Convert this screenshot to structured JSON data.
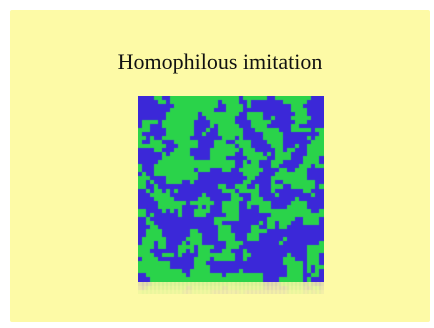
{
  "slide": {
    "title": "Homophilous imitation",
    "background_color": "#fdfaa6"
  },
  "simulation": {
    "grid_size": 46,
    "colors": [
      "#2ad34a",
      "#3b28d8"
    ],
    "fraction_green": 0.5
  }
}
